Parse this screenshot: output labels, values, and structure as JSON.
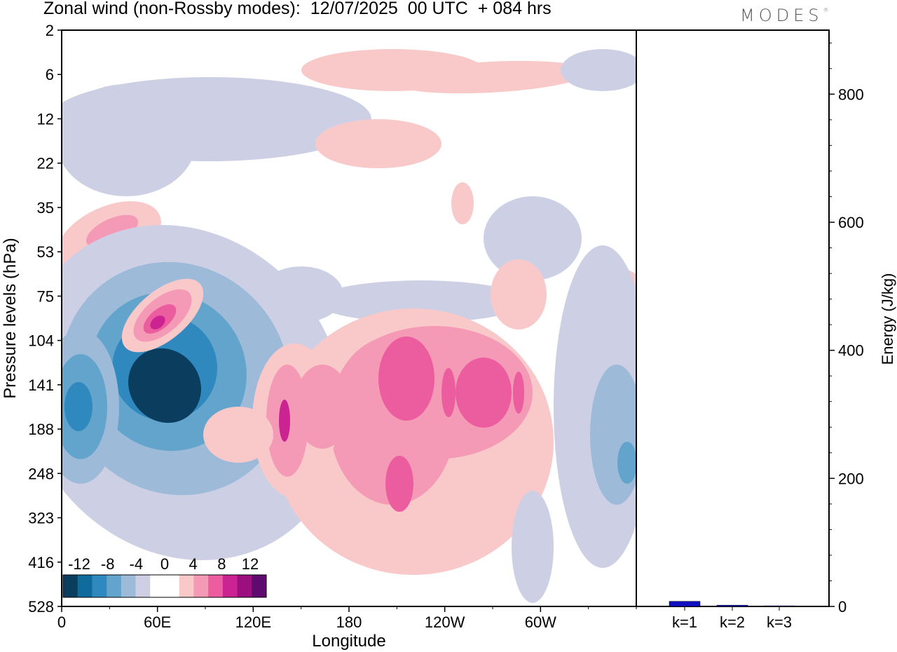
{
  "header": {
    "title": "Zonal wind (non-Rossby modes):  12/07/2025  00 UTC  + 084 hrs",
    "logo": "MODES"
  },
  "chart_data": [
    {
      "type": "heatmap",
      "title": "Zonal wind (non-Rossby modes):  12/07/2025  00 UTC  + 084 hrs",
      "xlabel": "Longitude",
      "ylabel": "Pressure levels (hPa)",
      "x_ticks": [
        {
          "lon": 0,
          "label": "0"
        },
        {
          "lon": 60,
          "label": "60E"
        },
        {
          "lon": 120,
          "label": "120E"
        },
        {
          "lon": 180,
          "label": "180"
        },
        {
          "lon": 240,
          "label": "120W"
        },
        {
          "lon": 300,
          "label": "60W"
        }
      ],
      "xlim": [
        0,
        360
      ],
      "y_levels": [
        "2",
        "6",
        "12",
        "22",
        "35",
        "53",
        "75",
        "104",
        "141",
        "188",
        "248",
        "323",
        "416",
        "528"
      ],
      "colorbar": {
        "labels": [
          "-12",
          "-8",
          "-4",
          "0",
          "4",
          "8",
          "12"
        ],
        "levels": [
          -14,
          -12,
          -10,
          -8,
          -6,
          -4,
          -2,
          0,
          2,
          4,
          6,
          8,
          10,
          12,
          14
        ],
        "colors": [
          "#0b3d5e",
          "#0f6b9c",
          "#2f89be",
          "#63a4cc",
          "#9dbbd9",
          "#cdd0e4",
          "#ffffff",
          "#ffffff",
          "#f9c9c9",
          "#f59ab6",
          "#ec5d9f",
          "#cb2392",
          "#9b0f7e",
          "#5e0a6e"
        ]
      },
      "features": [
        {
          "name": "negative jet core",
          "lon": 28,
          "level": "141",
          "value": -13
        },
        {
          "name": "negative western core",
          "lon": 8,
          "level": "141",
          "value": -8
        },
        {
          "name": "positive upper core",
          "lon": 47,
          "level": "104",
          "value": 10
        },
        {
          "name": "positive tropical band core",
          "lon": 140,
          "level": "188",
          "value": 8
        },
        {
          "name": "positive central core",
          "lon": 215,
          "level": "141",
          "value": 9
        },
        {
          "name": "negative eastern core",
          "lon": 350,
          "level": "248",
          "value": -9
        }
      ]
    },
    {
      "type": "bar",
      "categories": [
        "k=1",
        "k=2",
        "k=3"
      ],
      "values": [
        8,
        2,
        1
      ],
      "ylabel": "Energy (J/kg)",
      "ylim": [
        0,
        900
      ],
      "yticks": [
        0,
        200,
        400,
        600,
        800
      ],
      "bar_color": "#1010c0"
    }
  ]
}
